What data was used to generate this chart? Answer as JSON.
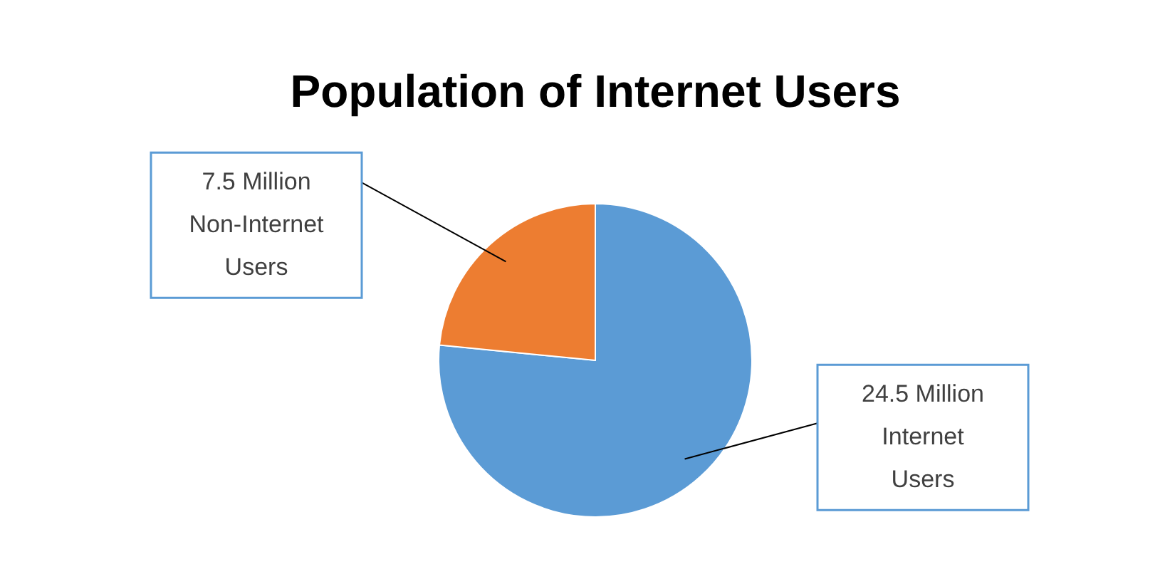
{
  "chart_data": {
    "type": "pie",
    "title": "Population of Internet Users",
    "categories": [
      "Internet Users",
      "Non-Internet Users"
    ],
    "values": [
      24.5,
      7.5
    ],
    "value_labels": [
      "24.5 Million",
      "7.5 Million"
    ],
    "colors": [
      "#5b9bd5",
      "#ed7d31"
    ]
  }
}
